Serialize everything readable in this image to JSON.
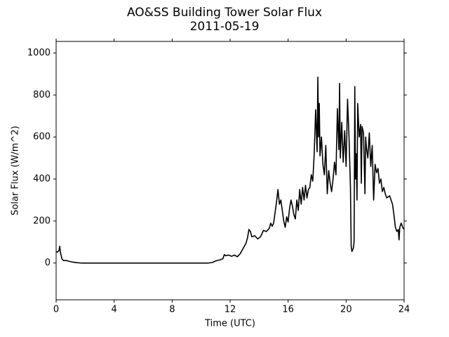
{
  "chart_data": {
    "type": "line",
    "title": "AO&SS Building Tower Solar Flux",
    "subtitle": "2011-05-19",
    "x_label": "Time (UTC)",
    "y_label": "Solar Flux (W/m^2)",
    "xlim": [
      0,
      24
    ],
    "xticks": [
      0,
      4,
      8,
      12,
      16,
      20,
      24
    ],
    "ylim": [
      -175,
      1055
    ],
    "yticks": [
      0,
      200,
      400,
      600,
      800,
      1000
    ],
    "color": "#000000",
    "x": [
      0,
      0.1,
      0.2,
      0.25,
      0.3,
      0.4,
      0.5,
      0.7,
      0.9,
      1.1,
      1.4,
      1.7,
      2,
      4,
      6,
      8,
      10,
      10.5,
      10.8,
      11,
      11.3,
      11.5,
      11.6,
      11.7,
      11.9,
      12.1,
      12.3,
      12.5,
      12.7,
      12.9,
      13.1,
      13.2,
      13.3,
      13.4,
      13.5,
      13.7,
      13.9,
      14.1,
      14.3,
      14.5,
      14.7,
      14.8,
      14.9,
      15.0,
      15.1,
      15.2,
      15.3,
      15.4,
      15.5,
      15.6,
      15.7,
      15.8,
      15.9,
      16.0,
      16.1,
      16.2,
      16.3,
      16.4,
      16.5,
      16.6,
      16.7,
      16.8,
      16.9,
      17.0,
      17.1,
      17.2,
      17.3,
      17.4,
      17.5,
      17.6,
      17.7,
      17.8,
      17.9,
      18.0,
      18.05,
      18.1,
      18.15,
      18.2,
      18.3,
      18.4,
      18.5,
      18.6,
      18.7,
      18.8,
      18.9,
      19.0,
      19.1,
      19.2,
      19.3,
      19.4,
      19.5,
      19.55,
      19.6,
      19.7,
      19.8,
      19.9,
      20.0,
      20.1,
      20.2,
      20.3,
      20.35,
      20.4,
      20.5,
      20.55,
      20.6,
      20.65,
      20.7,
      20.75,
      20.8,
      20.9,
      21.0,
      21.05,
      21.1,
      21.2,
      21.3,
      21.35,
      21.4,
      21.5,
      21.6,
      21.7,
      21.8,
      21.9,
      22.0,
      22.1,
      22.2,
      22.3,
      22.4,
      22.5,
      22.6,
      22.7,
      22.8,
      23.0,
      23.2,
      23.3,
      23.4,
      23.5,
      23.6,
      23.65,
      23.7,
      23.8,
      23.9,
      24
    ],
    "values": [
      55,
      52,
      60,
      80,
      50,
      20,
      12,
      12,
      8,
      5,
      2,
      0,
      0,
      0,
      0,
      0,
      0,
      0,
      3,
      10,
      15,
      20,
      40,
      35,
      38,
      32,
      38,
      30,
      45,
      70,
      95,
      120,
      160,
      150,
      125,
      130,
      115,
      125,
      155,
      150,
      165,
      190,
      175,
      190,
      240,
      290,
      350,
      280,
      300,
      250,
      200,
      170,
      220,
      195,
      260,
      300,
      270,
      230,
      210,
      300,
      250,
      350,
      280,
      360,
      300,
      370,
      310,
      350,
      360,
      420,
      390,
      520,
      730,
      530,
      885,
      600,
      760,
      510,
      600,
      470,
      420,
      560,
      330,
      440,
      380,
      340,
      400,
      480,
      420,
      735,
      540,
      855,
      500,
      670,
      480,
      630,
      460,
      780,
      600,
      360,
      80,
      55,
      70,
      100,
      840,
      400,
      520,
      300,
      760,
      600,
      660,
      380,
      650,
      620,
      330,
      600,
      550,
      500,
      620,
      460,
      560,
      300,
      470,
      430,
      450,
      380,
      400,
      340,
      360,
      330,
      310,
      320,
      280,
      230,
      170,
      150,
      160,
      110,
      170,
      190,
      170,
      160
    ]
  }
}
